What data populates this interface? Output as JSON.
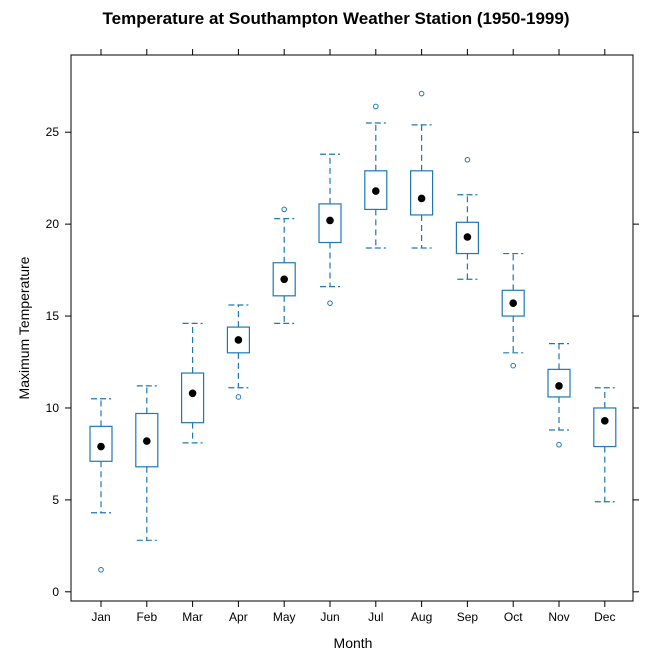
{
  "chart_data": {
    "type": "box",
    "title": "Temperature at Southampton Weather Station (1950-1999)",
    "xlabel": "Month",
    "ylabel": "Maximum Temperature",
    "ylim": [
      -0.5,
      29.2
    ],
    "yticks": [
      0,
      5,
      10,
      15,
      20,
      25
    ],
    "color": "#1f78b4",
    "categories": [
      "Jan",
      "Feb",
      "Mar",
      "Apr",
      "May",
      "Jun",
      "Jul",
      "Aug",
      "Sep",
      "Oct",
      "Nov",
      "Dec"
    ],
    "boxes": [
      {
        "whisker_low": 4.3,
        "q1": 7.1,
        "median": 7.9,
        "q3": 9.0,
        "whisker_high": 10.5,
        "outliers": [
          1.2
        ]
      },
      {
        "whisker_low": 2.8,
        "q1": 6.8,
        "median": 8.2,
        "q3": 9.7,
        "whisker_high": 11.2,
        "outliers": []
      },
      {
        "whisker_low": 8.1,
        "q1": 9.2,
        "median": 10.8,
        "q3": 11.9,
        "whisker_high": 14.6,
        "outliers": []
      },
      {
        "whisker_low": 11.1,
        "q1": 13.0,
        "median": 13.7,
        "q3": 14.4,
        "whisker_high": 15.6,
        "outliers": [
          10.6
        ]
      },
      {
        "whisker_low": 14.6,
        "q1": 16.1,
        "median": 17.0,
        "q3": 17.9,
        "whisker_high": 20.3,
        "outliers": [
          20.8
        ]
      },
      {
        "whisker_low": 16.6,
        "q1": 19.0,
        "median": 20.2,
        "q3": 21.1,
        "whisker_high": 23.8,
        "outliers": [
          15.7
        ]
      },
      {
        "whisker_low": 18.7,
        "q1": 20.8,
        "median": 21.8,
        "q3": 22.9,
        "whisker_high": 25.5,
        "outliers": [
          26.4
        ]
      },
      {
        "whisker_low": 18.7,
        "q1": 20.5,
        "median": 21.4,
        "q3": 22.9,
        "whisker_high": 25.4,
        "outliers": [
          27.1
        ]
      },
      {
        "whisker_low": 17.0,
        "q1": 18.4,
        "median": 19.3,
        "q3": 20.1,
        "whisker_high": 21.6,
        "outliers": [
          23.5
        ]
      },
      {
        "whisker_low": 13.0,
        "q1": 15.0,
        "median": 15.7,
        "q3": 16.4,
        "whisker_high": 18.4,
        "outliers": [
          12.3
        ]
      },
      {
        "whisker_low": 8.8,
        "q1": 10.6,
        "median": 11.2,
        "q3": 12.1,
        "whisker_high": 13.5,
        "outliers": [
          8.0
        ]
      },
      {
        "whisker_low": 4.9,
        "q1": 7.9,
        "median": 9.3,
        "q3": 10.0,
        "whisker_high": 11.1,
        "outliers": []
      }
    ]
  }
}
